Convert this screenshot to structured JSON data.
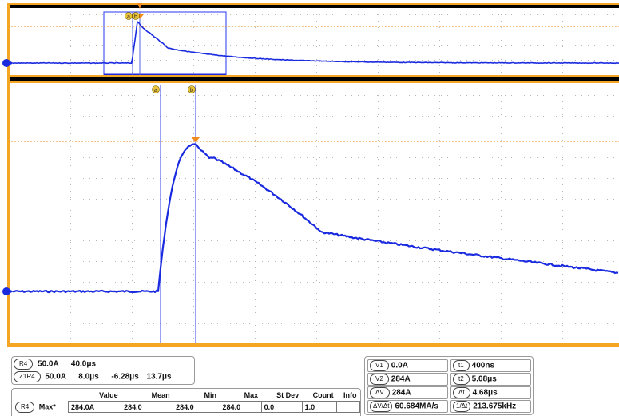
{
  "colors": {
    "frame": "#f5a524",
    "trace": "#1a2adf",
    "cursor_v": "#5662ee",
    "cursor_h": "#f08a1c",
    "grid": "#b8b8b8",
    "marker_fill": "#e9c43a"
  },
  "markers": {
    "a": "a",
    "b": "b"
  },
  "zoom_info": {
    "channel": "R4",
    "scale": "50.0A",
    "timebase": "40.0μs",
    "zoom_channel": "Z1R4",
    "zoom_scale": "50.0A",
    "zoom_timebase": "8.0μs",
    "zoom_pos": "-6.28μs",
    "zoom_width": "13.7μs"
  },
  "measurements": {
    "headers": [
      "Value",
      "Mean",
      "Min",
      "Max",
      "St Dev",
      "Count",
      "Info"
    ],
    "rows": [
      {
        "channel": "R4",
        "name": "Max*",
        "value": "284.0A",
        "mean": "284.0",
        "min": "284.0",
        "max": "284.0",
        "stdev": "0.0",
        "count": "1.0",
        "info": ""
      }
    ]
  },
  "cursors": {
    "v1": {
      "label": "V1",
      "value": "0.0A"
    },
    "v2": {
      "label": "V2",
      "value": "284A"
    },
    "dv": {
      "label": "ΔV",
      "value": "284A"
    },
    "dvdt": {
      "label": "ΔV/Δt",
      "value": "60.684MA/s"
    },
    "t1": {
      "label": "t1",
      "value": "400ns"
    },
    "t2": {
      "label": "t2",
      "value": "5.08μs"
    },
    "dt": {
      "label": "Δt",
      "value": "4.68μs"
    },
    "inv": {
      "label": "1/Δt",
      "value": "213.675kHz"
    }
  },
  "waveform": {
    "baseline_A": 0.0,
    "peak_A": 284.0,
    "t1": "400ns",
    "t2": "5.08μs"
  }
}
